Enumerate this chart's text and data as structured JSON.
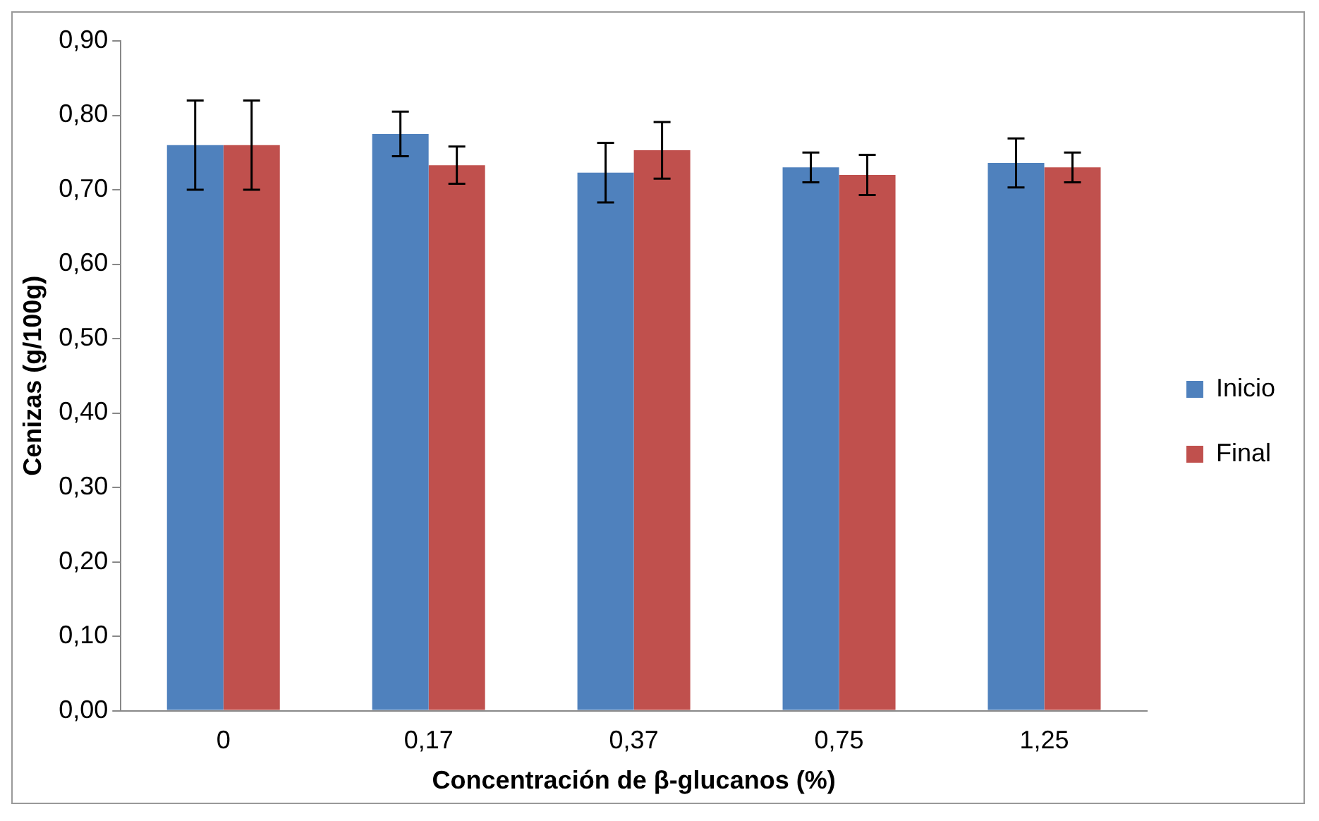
{
  "chart_data": {
    "type": "bar",
    "xlabel": "Concentración de β-glucanos (%)",
    "ylabel": "Cenizas (g/100g)",
    "categories": [
      "0",
      "0,17",
      "0,37",
      "0,75",
      "1,25"
    ],
    "series": [
      {
        "name": "Inicio",
        "color": "#4f81bd",
        "values": [
          0.76,
          0.775,
          0.723,
          0.73,
          0.736
        ],
        "errors": [
          0.06,
          0.03,
          0.04,
          0.02,
          0.033
        ]
      },
      {
        "name": "Final",
        "color": "#c0504d",
        "values": [
          0.76,
          0.733,
          0.753,
          0.72,
          0.73
        ],
        "errors": [
          0.06,
          0.025,
          0.038,
          0.027,
          0.02
        ]
      }
    ],
    "ylim": [
      0,
      0.9
    ],
    "yticks": [
      {
        "value": 0,
        "label": "0,00"
      },
      {
        "value": 0.1,
        "label": "0,10"
      },
      {
        "value": 0.2,
        "label": "0,20"
      },
      {
        "value": 0.3,
        "label": "0,30"
      },
      {
        "value": 0.4,
        "label": "0,40"
      },
      {
        "value": 0.5,
        "label": "0,50"
      },
      {
        "value": 0.6,
        "label": "0,60"
      },
      {
        "value": 0.7,
        "label": "0,70"
      },
      {
        "value": 0.8,
        "label": "0,80"
      },
      {
        "value": 0.9,
        "label": "0,90"
      }
    ],
    "grid": false,
    "legend": "right"
  }
}
